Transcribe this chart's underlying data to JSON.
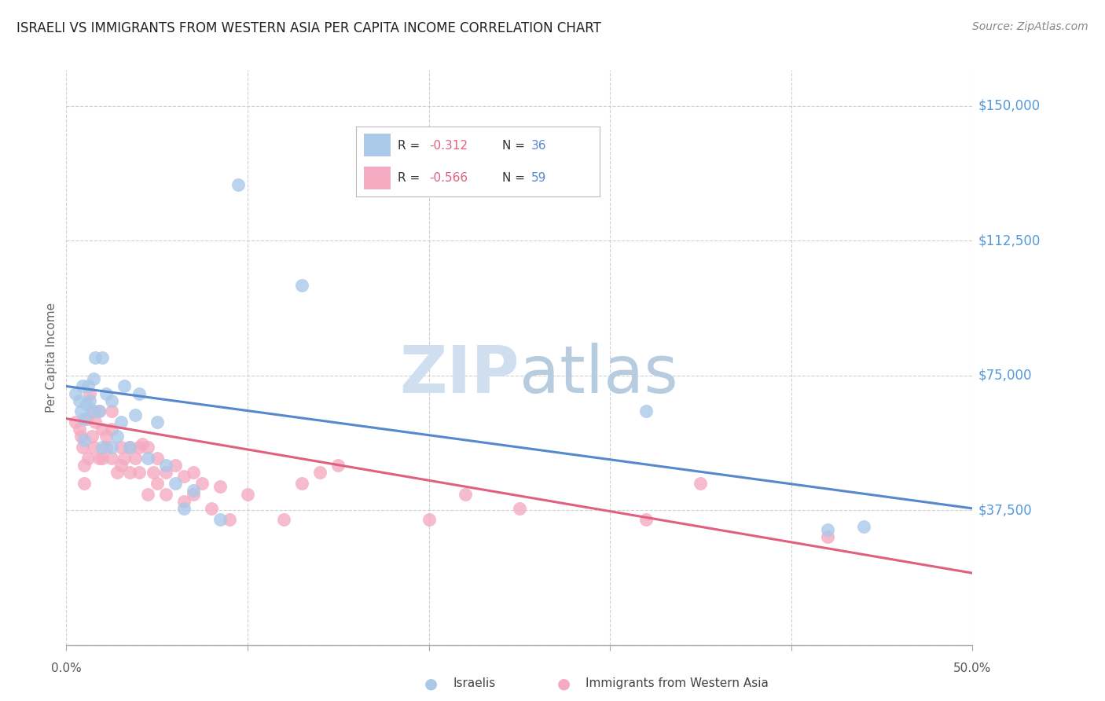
{
  "title": "ISRAELI VS IMMIGRANTS FROM WESTERN ASIA PER CAPITA INCOME CORRELATION CHART",
  "source": "Source: ZipAtlas.com",
  "ylabel": "Per Capita Income",
  "yticks": [
    0,
    37500,
    75000,
    112500,
    150000
  ],
  "ytick_labels": [
    "",
    "$37,500",
    "$75,000",
    "$112,500",
    "$150,000"
  ],
  "ylim": [
    0,
    160000
  ],
  "xlim": [
    0.0,
    0.5
  ],
  "legend_blue_r": "-0.312",
  "legend_blue_n": "36",
  "legend_pink_r": "-0.566",
  "legend_pink_n": "59",
  "blue_scatter_color": "#aac8e8",
  "pink_scatter_color": "#f4aac0",
  "blue_line_color": "#5588cc",
  "pink_line_color": "#e06080",
  "watermark_color": "#d0dff0",
  "background_color": "#ffffff",
  "grid_color": "#d0d0d0",
  "axis_label_color": "#5599dd",
  "title_color": "#222222",
  "source_color": "#888888",
  "israelis_x": [
    0.005,
    0.007,
    0.008,
    0.009,
    0.01,
    0.01,
    0.011,
    0.012,
    0.013,
    0.014,
    0.015,
    0.016,
    0.018,
    0.02,
    0.02,
    0.022,
    0.025,
    0.025,
    0.028,
    0.03,
    0.032,
    0.035,
    0.038,
    0.04,
    0.045,
    0.05,
    0.055,
    0.06,
    0.065,
    0.07,
    0.085,
    0.095,
    0.13,
    0.32,
    0.42,
    0.44
  ],
  "israelis_y": [
    70000,
    68000,
    65000,
    72000,
    63000,
    57000,
    67000,
    72000,
    68000,
    65000,
    74000,
    80000,
    65000,
    55000,
    80000,
    70000,
    68000,
    55000,
    58000,
    62000,
    72000,
    55000,
    64000,
    70000,
    52000,
    62000,
    50000,
    45000,
    38000,
    43000,
    35000,
    128000,
    100000,
    65000,
    32000,
    33000
  ],
  "immigrants_x": [
    0.005,
    0.007,
    0.008,
    0.009,
    0.01,
    0.01,
    0.011,
    0.012,
    0.013,
    0.014,
    0.015,
    0.015,
    0.016,
    0.018,
    0.018,
    0.02,
    0.02,
    0.022,
    0.022,
    0.025,
    0.025,
    0.025,
    0.028,
    0.03,
    0.03,
    0.032,
    0.035,
    0.035,
    0.038,
    0.04,
    0.04,
    0.042,
    0.045,
    0.045,
    0.048,
    0.05,
    0.05,
    0.055,
    0.055,
    0.06,
    0.065,
    0.065,
    0.07,
    0.07,
    0.075,
    0.08,
    0.085,
    0.09,
    0.1,
    0.12,
    0.13,
    0.14,
    0.15,
    0.2,
    0.22,
    0.25,
    0.32,
    0.35,
    0.42
  ],
  "immigrants_y": [
    62000,
    60000,
    58000,
    55000,
    50000,
    45000,
    63000,
    52000,
    70000,
    58000,
    65000,
    55000,
    62000,
    52000,
    65000,
    60000,
    52000,
    58000,
    55000,
    65000,
    60000,
    52000,
    48000,
    55000,
    50000,
    52000,
    55000,
    48000,
    52000,
    55000,
    48000,
    56000,
    55000,
    42000,
    48000,
    52000,
    45000,
    48000,
    42000,
    50000,
    47000,
    40000,
    48000,
    42000,
    45000,
    38000,
    44000,
    35000,
    42000,
    35000,
    45000,
    48000,
    50000,
    35000,
    42000,
    38000,
    35000,
    45000,
    30000
  ],
  "blue_trendline_x": [
    0.0,
    0.5
  ],
  "blue_trendline_y": [
    72000,
    38000
  ],
  "pink_trendline_x": [
    0.0,
    0.5
  ],
  "pink_trendline_y": [
    63000,
    20000
  ]
}
